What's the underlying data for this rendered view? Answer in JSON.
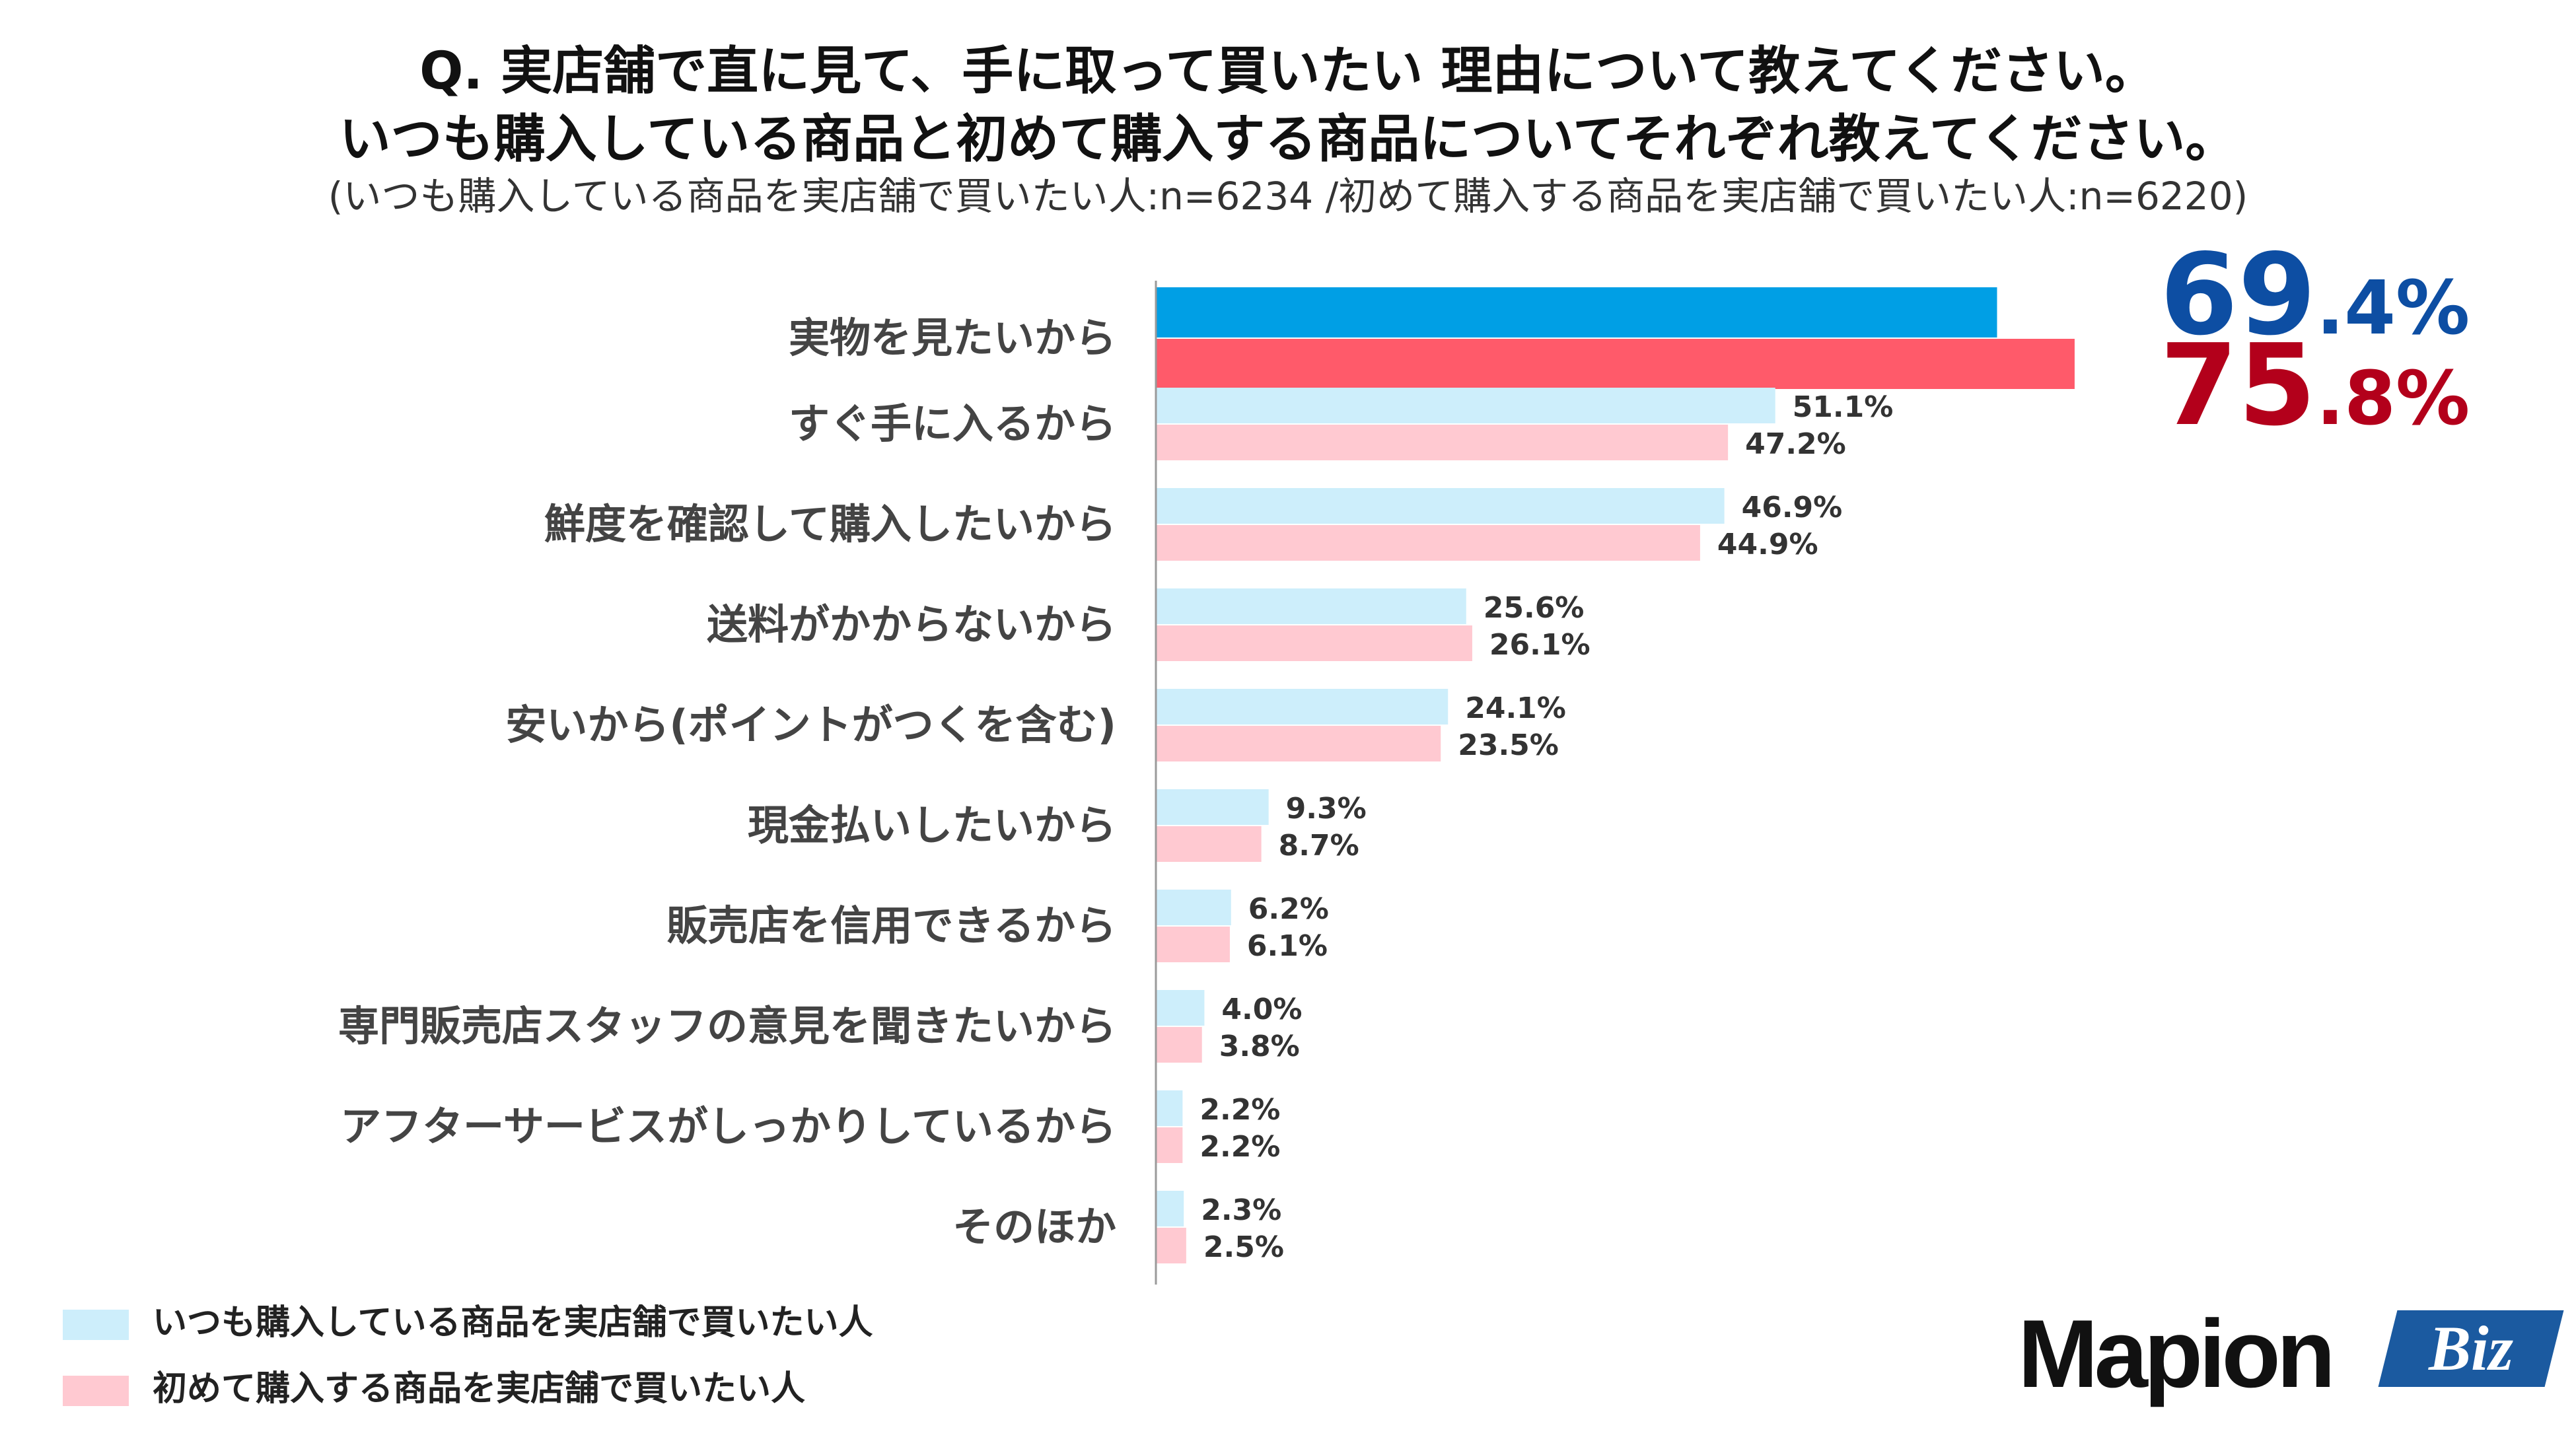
{
  "title": {
    "line1": "Q. 実店舗で直に見て、手に取って買いたい 理由について教えてください。",
    "line2": "いつも購入している商品と初めて購入する商品についてそれぞれ教えてください。",
    "subtitle": "(いつも購入している商品を実店舗で買いたい人:n=6234 /初めて購入する商品を実店舗で買いたい人:n=6220)"
  },
  "chart_data": {
    "type": "bar",
    "orientation": "horizontal",
    "xlim": [
      0,
      100
    ],
    "value_suffix": "%",
    "categories": [
      "実物を見たいから",
      "すぐ手に入るから",
      "鮮度を確認して購入したいから",
      "送料がかからないから",
      "安いから(ポイントがつくを含む)",
      "現金払いしたいから",
      "販売店を信用できるから",
      "専門販売店スタッフの意見を聞きたいから",
      "アフターサービスがしっかりしているから",
      "そのほか"
    ],
    "series": [
      {
        "name": "いつも購入している商品を実店舗で買いたい人",
        "values": [
          69.4,
          51.1,
          46.9,
          25.6,
          24.1,
          9.3,
          6.2,
          4.0,
          2.2,
          2.3
        ],
        "labels": [
          "69.4%",
          "51.1%",
          "46.9%",
          "25.6%",
          "24.1%",
          "9.3%",
          "6.2%",
          "4.0%",
          "2.2%",
          "2.3%"
        ],
        "color": "#cdeefb",
        "highlight_color": "#009fe5",
        "highlight_label_color": "#0d4ea3"
      },
      {
        "name": "初めて購入する商品を実店舗で買いたい人",
        "values": [
          75.8,
          47.2,
          44.9,
          26.1,
          23.5,
          8.7,
          6.1,
          3.8,
          2.2,
          2.5
        ],
        "labels": [
          "75.8%",
          "47.2%",
          "44.9%",
          "26.1%",
          "23.5%",
          "8.7%",
          "6.1%",
          "3.8%",
          "2.2%",
          "2.5%"
        ],
        "color": "#ffc9d1",
        "highlight_color": "#ff5a6a",
        "highlight_label_color": "#b3001b"
      }
    ],
    "highlight_index": 0,
    "highlight_parts": [
      {
        "int": "69",
        "dec": ".4%"
      },
      {
        "int": "75",
        "dec": ".8%"
      }
    ]
  },
  "legend": {
    "series1": "いつも購入している商品を実店舗で買いたい人",
    "series2": "初めて購入する商品を実店舗で買いたい人"
  },
  "logo": {
    "main": "Mapion",
    "tag": "Biz"
  }
}
